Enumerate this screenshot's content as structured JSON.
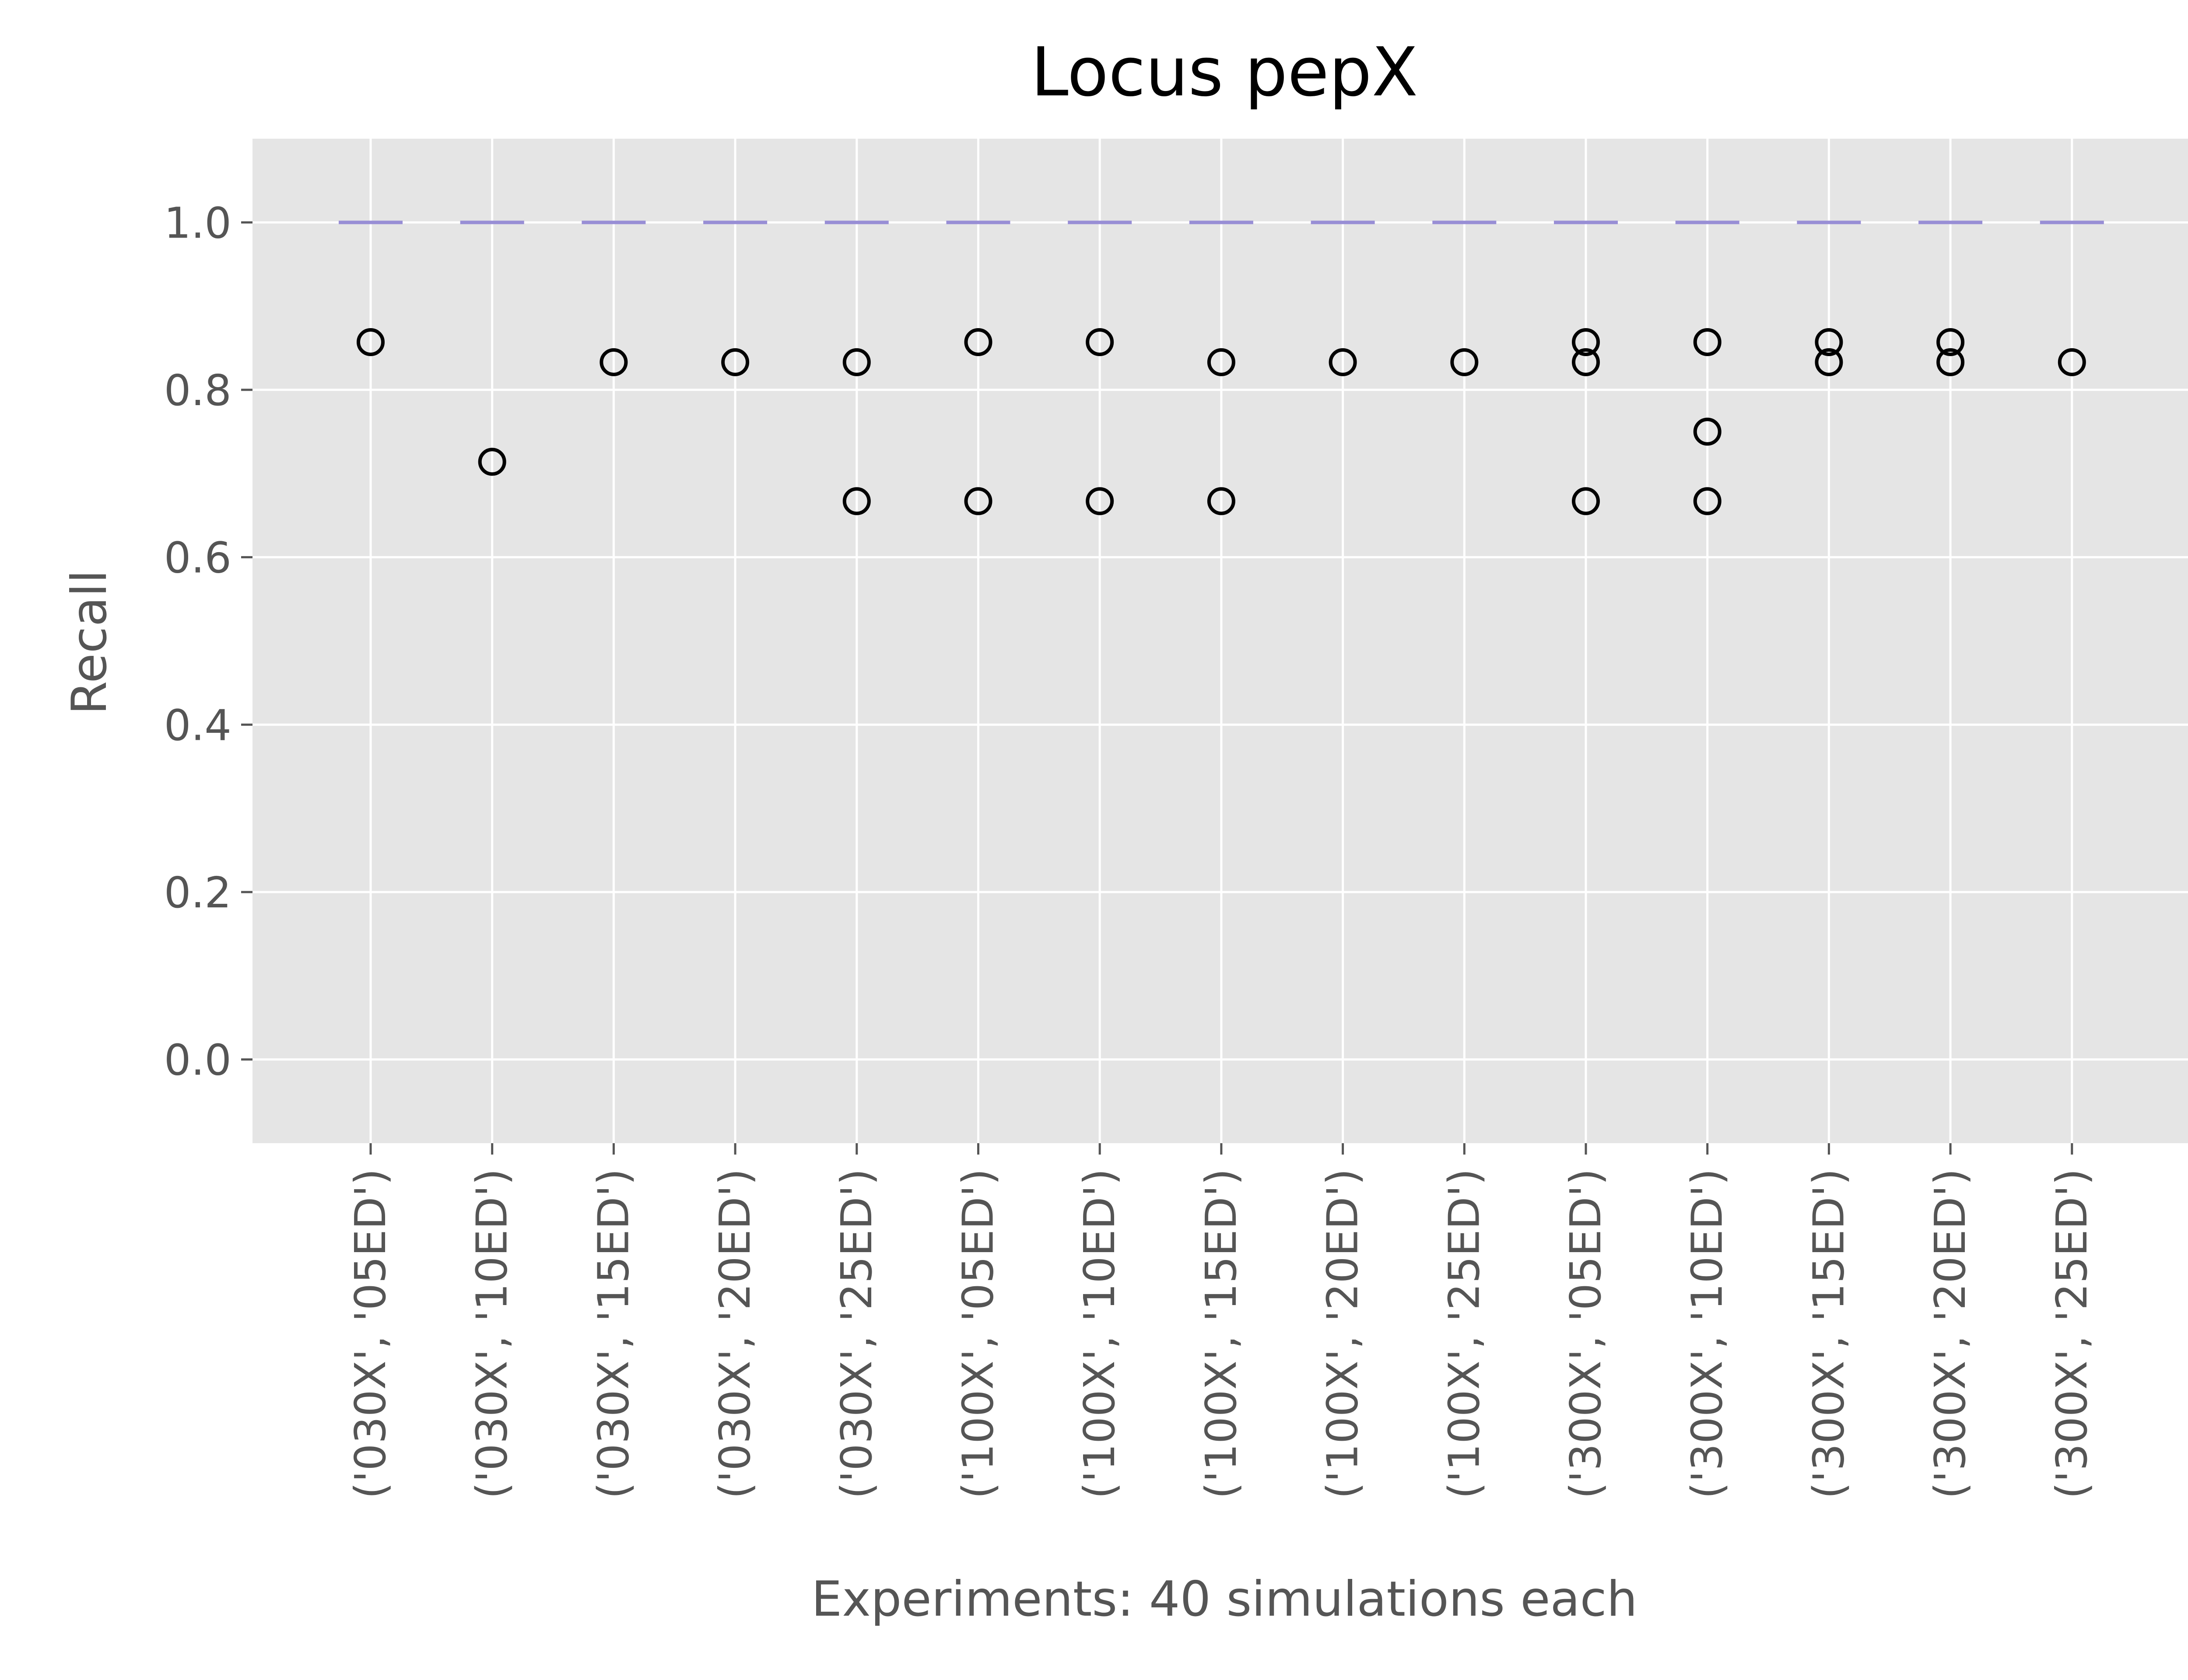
{
  "chart_data": {
    "type": "box",
    "title": "Locus pepX",
    "xlabel": "Experiments: 40 simulations each",
    "ylabel": "Recall",
    "ylim": [
      -0.1,
      1.1
    ],
    "yticks": [
      0.0,
      0.2,
      0.4,
      0.6,
      0.8,
      1.0
    ],
    "ytick_labels": [
      "0.0",
      "0.2",
      "0.4",
      "0.6",
      "0.8",
      "1.0"
    ],
    "grid": true,
    "legend": "none",
    "categories": [
      "('030X', '05ED')",
      "('030X', '10ED')",
      "('030X', '15ED')",
      "('030X', '20ED')",
      "('030X', '25ED')",
      "('100X', '05ED')",
      "('100X', '10ED')",
      "('100X', '15ED')",
      "('100X', '20ED')",
      "('100X', '25ED')",
      "('300X', '05ED')",
      "('300X', '10ED')",
      "('300X', '15ED')",
      "('300X', '20ED')",
      "('300X', '25ED')"
    ],
    "medians": [
      1.0,
      1.0,
      1.0,
      1.0,
      1.0,
      1.0,
      1.0,
      1.0,
      1.0,
      1.0,
      1.0,
      1.0,
      1.0,
      1.0,
      1.0
    ],
    "outliers": [
      [
        0.857
      ],
      [
        0.714
      ],
      [
        0.833
      ],
      [
        0.833
      ],
      [
        0.833,
        0.667
      ],
      [
        0.857,
        0.667
      ],
      [
        0.857,
        0.667
      ],
      [
        0.833,
        0.667
      ],
      [
        0.833
      ],
      [
        0.833
      ],
      [
        0.857,
        0.833,
        0.667
      ],
      [
        0.857,
        0.75,
        0.667
      ],
      [
        0.857,
        0.833
      ],
      [
        0.857,
        0.833
      ],
      [
        0.833
      ]
    ],
    "colors": {
      "plot_background": "#E5E5E5",
      "grid": "#FFFFFF",
      "median": "#988ED5",
      "outlier_edge": "#000000",
      "tick": "#555555"
    }
  }
}
